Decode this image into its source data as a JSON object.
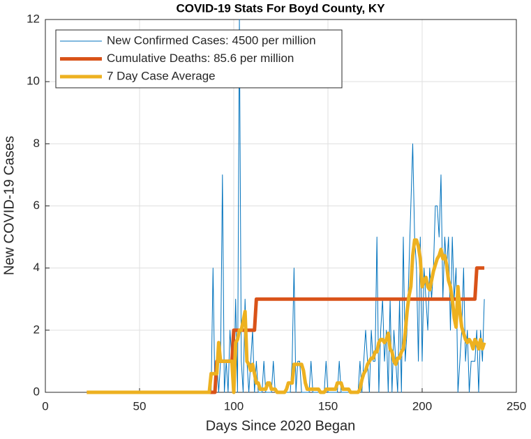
{
  "chart_data": {
    "type": "line",
    "title": "COVID-19 Stats For Boyd County, KY",
    "xlabel": "Days Since 2020 Began",
    "ylabel": "New COVID-19 Cases",
    "xlim": [
      0,
      250
    ],
    "xticks": [
      0,
      50,
      100,
      150,
      200,
      250
    ],
    "ylim": [
      0,
      12
    ],
    "yticks": [
      0,
      2,
      4,
      6,
      8,
      10,
      12
    ],
    "grid": true,
    "legend": "upper left",
    "x": [
      22,
      23,
      24,
      25,
      26,
      27,
      28,
      29,
      30,
      31,
      32,
      33,
      34,
      35,
      36,
      37,
      38,
      39,
      40,
      41,
      42,
      43,
      44,
      45,
      46,
      47,
      48,
      49,
      50,
      51,
      52,
      53,
      54,
      55,
      56,
      57,
      58,
      59,
      60,
      61,
      62,
      63,
      64,
      65,
      66,
      67,
      68,
      69,
      70,
      71,
      72,
      73,
      74,
      75,
      76,
      77,
      78,
      79,
      80,
      81,
      82,
      83,
      84,
      85,
      86,
      87,
      88,
      89,
      90,
      91,
      92,
      93,
      94,
      95,
      96,
      97,
      98,
      99,
      100,
      101,
      102,
      103,
      104,
      105,
      106,
      107,
      108,
      109,
      110,
      111,
      112,
      113,
      114,
      115,
      116,
      117,
      118,
      119,
      120,
      121,
      122,
      123,
      124,
      125,
      126,
      127,
      128,
      129,
      130,
      131,
      132,
      133,
      134,
      135,
      136,
      137,
      138,
      139,
      140,
      141,
      142,
      143,
      144,
      145,
      146,
      147,
      148,
      149,
      150,
      151,
      152,
      153,
      154,
      155,
      156,
      157,
      158,
      159,
      160,
      161,
      162,
      163,
      164,
      165,
      166,
      167,
      168,
      169,
      170,
      171,
      172,
      173,
      174,
      175,
      176,
      177,
      178,
      179,
      180,
      181,
      182,
      183,
      184,
      185,
      186,
      187,
      188,
      189,
      190,
      191,
      192,
      193,
      194,
      195,
      196,
      197,
      198,
      199,
      200,
      201,
      202,
      203,
      204,
      205,
      206,
      207,
      208,
      209,
      210,
      211,
      212,
      213,
      214,
      215,
      216,
      217,
      218,
      219,
      220,
      221,
      222,
      223,
      224,
      225,
      226,
      227,
      228,
      229,
      230,
      231,
      232,
      233
    ],
    "series": [
      {
        "name": "New Confirmed Cases: 4500 per million",
        "color": "#0072BD",
        "width": 1,
        "values": [
          0,
          0,
          0,
          0,
          0,
          0,
          0,
          0,
          0,
          0,
          0,
          0,
          0,
          0,
          0,
          0,
          0,
          0,
          0,
          0,
          0,
          0,
          0,
          0,
          0,
          0,
          0,
          0,
          0,
          0,
          0,
          0,
          0,
          0,
          0,
          0,
          0,
          0,
          0,
          0,
          0,
          0,
          0,
          0,
          0,
          0,
          0,
          0,
          0,
          0,
          0,
          0,
          0,
          0,
          0,
          0,
          0,
          0,
          0,
          0,
          0,
          0,
          0,
          0,
          0,
          0,
          0,
          4,
          0,
          1,
          0,
          1,
          7,
          0,
          1,
          0,
          2,
          1,
          0,
          3,
          0,
          12,
          1,
          0,
          3,
          1,
          0,
          1,
          2,
          0,
          1,
          0,
          0,
          0,
          1,
          0,
          0,
          0,
          0,
          1,
          0,
          0,
          0,
          0,
          0,
          0,
          0,
          0,
          0,
          1,
          4,
          0,
          1,
          1,
          0,
          0,
          0,
          0,
          0,
          1,
          0,
          0,
          0,
          0,
          0,
          0,
          0,
          1,
          0,
          0,
          0,
          0,
          0,
          0,
          1,
          0,
          0,
          0,
          0,
          0,
          0,
          0,
          0,
          0,
          0,
          1,
          0,
          1,
          2,
          1,
          0,
          2,
          1,
          1,
          5,
          0,
          2,
          3,
          1,
          2,
          0,
          3,
          0,
          2,
          1,
          0,
          3,
          0,
          5,
          1,
          2,
          4,
          6,
          8,
          5,
          4,
          1,
          5,
          1,
          4,
          3,
          2,
          4,
          3,
          4,
          6,
          6,
          5,
          7,
          3,
          5,
          4,
          5,
          2,
          5,
          3,
          4,
          0,
          1,
          2,
          4,
          1,
          2,
          0,
          1,
          1,
          1,
          2,
          0,
          2,
          1,
          3
        ]
      },
      {
        "name": "Cumulative Deaths: 85.6 per million",
        "color": "#D95319",
        "width": 5,
        "values": [
          0,
          0,
          0,
          0,
          0,
          0,
          0,
          0,
          0,
          0,
          0,
          0,
          0,
          0,
          0,
          0,
          0,
          0,
          0,
          0,
          0,
          0,
          0,
          0,
          0,
          0,
          0,
          0,
          0,
          0,
          0,
          0,
          0,
          0,
          0,
          0,
          0,
          0,
          0,
          0,
          0,
          0,
          0,
          0,
          0,
          0,
          0,
          0,
          0,
          0,
          0,
          0,
          0,
          0,
          0,
          0,
          0,
          0,
          0,
          0,
          0,
          0,
          0,
          0,
          0,
          0,
          0,
          0,
          0,
          1,
          1,
          1,
          1,
          1,
          1,
          1,
          1,
          1,
          2,
          2,
          2,
          2,
          2,
          2,
          2,
          2,
          2,
          2,
          2,
          2,
          3,
          3,
          3,
          3,
          3,
          3,
          3,
          3,
          3,
          3,
          3,
          3,
          3,
          3,
          3,
          3,
          3,
          3,
          3,
          3,
          3,
          3,
          3,
          3,
          3,
          3,
          3,
          3,
          3,
          3,
          3,
          3,
          3,
          3,
          3,
          3,
          3,
          3,
          3,
          3,
          3,
          3,
          3,
          3,
          3,
          3,
          3,
          3,
          3,
          3,
          3,
          3,
          3,
          3,
          3,
          3,
          3,
          3,
          3,
          3,
          3,
          3,
          3,
          3,
          3,
          3,
          3,
          3,
          3,
          3,
          3,
          3,
          3,
          3,
          3,
          3,
          3,
          3,
          3,
          3,
          3,
          3,
          3,
          3,
          3,
          3,
          3,
          3,
          3,
          3,
          3,
          3,
          3,
          3,
          3,
          3,
          3,
          3,
          3,
          3,
          3,
          3,
          3,
          3,
          3,
          3,
          3,
          3,
          3,
          3,
          3,
          3,
          3,
          3,
          3,
          3,
          3,
          4,
          4,
          4,
          4,
          4
        ]
      },
      {
        "name": "7 Day Case Average",
        "color": "#EDB120",
        "width": 5,
        "values": [
          0,
          0,
          0,
          0,
          0,
          0,
          0,
          0,
          0,
          0,
          0,
          0,
          0,
          0,
          0,
          0,
          0,
          0,
          0,
          0,
          0,
          0,
          0,
          0,
          0,
          0,
          0,
          0,
          0,
          0,
          0,
          0,
          0,
          0,
          0,
          0,
          0,
          0,
          0,
          0,
          0,
          0,
          0,
          0,
          0,
          0,
          0,
          0,
          0,
          0,
          0,
          0,
          0,
          0,
          0,
          0,
          0,
          0,
          0,
          0,
          0,
          0,
          0,
          0,
          0,
          0,
          0.6,
          0.6,
          0.6,
          0.6,
          1.6,
          1,
          1,
          1,
          1,
          1,
          1,
          1,
          0,
          1.6,
          1.7,
          2,
          2,
          2.3,
          2.6,
          1,
          0.9,
          0.7,
          0.9,
          0.6,
          0.3,
          0.3,
          0.1,
          0.1,
          0.1,
          0.1,
          0.3,
          0.3,
          0.1,
          0.1,
          0.1,
          0,
          0,
          0,
          0,
          0,
          0.1,
          0.3,
          0.3,
          0.3,
          0.9,
          0.9,
          0.9,
          0.9,
          0.9,
          0.7,
          0.3,
          0.1,
          0.1,
          0.1,
          0.1,
          0.1,
          0.1,
          0.1,
          0,
          0,
          0,
          0.1,
          0.1,
          0.1,
          0.1,
          0.1,
          0.1,
          0.3,
          0.3,
          0.3,
          0.1,
          0.1,
          0.1,
          0.1,
          0,
          0,
          0,
          0,
          0,
          0.1,
          0.4,
          0.6,
          0.7,
          0.9,
          1,
          1.1,
          1.1,
          1.3,
          1.3,
          1.6,
          1.7,
          1.7,
          1.6,
          1.7,
          1.9,
          1.4,
          1.3,
          1,
          0.9,
          1.1,
          1.1,
          1.3,
          1.4,
          1.9,
          2.6,
          3.1,
          3.4,
          4.4,
          4.9,
          4.9,
          4.7,
          4.3,
          3.4,
          3.6,
          3.7,
          3.4,
          3.3,
          3.6,
          3.9,
          4.1,
          4.3,
          4.4,
          4.6,
          4.3,
          4.4,
          4.1,
          3.6,
          3.4,
          3,
          2.4,
          2.1,
          3.4,
          2.6,
          2.1,
          1.9,
          1.7,
          1.6,
          1.7,
          1.6,
          1.4,
          1.7,
          1.6,
          1.4,
          1.7,
          1.4,
          1.6
        ]
      }
    ]
  }
}
